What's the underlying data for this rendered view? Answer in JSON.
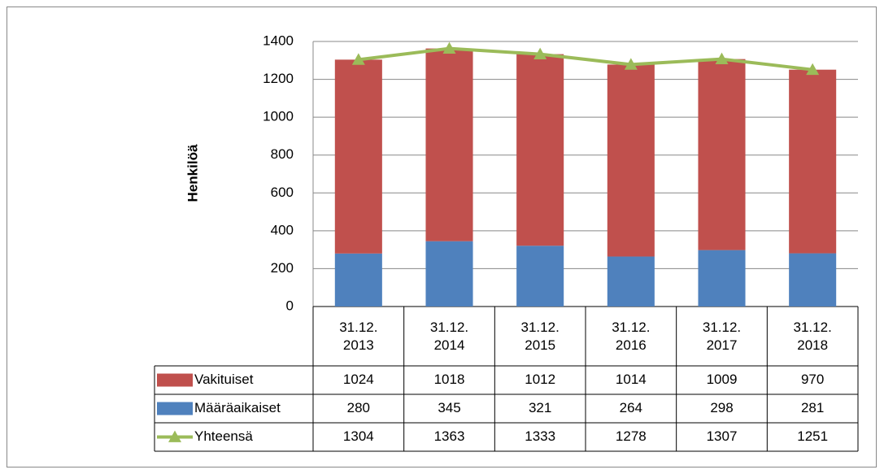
{
  "chart_data": {
    "type": "bar",
    "stacked": true,
    "y_label": "Henkilöä",
    "categories": [
      "31.12. 2013",
      "31.12. 2014",
      "31.12. 2015",
      "31.12. 2016",
      "31.12. 2017",
      "31.12. 2018"
    ],
    "series": [
      {
        "name": "Vakituiset",
        "color": "#c0504d",
        "values": [
          1024,
          1018,
          1012,
          1014,
          1009,
          970
        ]
      },
      {
        "name": "Määräaikaiset",
        "color": "#4f81bd",
        "values": [
          280,
          345,
          321,
          264,
          298,
          281
        ]
      },
      {
        "name": "Yhteensä",
        "type": "line",
        "color": "#9bbb59",
        "values": [
          1304,
          1363,
          1333,
          1278,
          1307,
          1251
        ]
      }
    ],
    "ylim": [
      0,
      1400
    ],
    "yticks": [
      0,
      200,
      400,
      600,
      800,
      1000,
      1200,
      1400
    ],
    "grid": true
  }
}
